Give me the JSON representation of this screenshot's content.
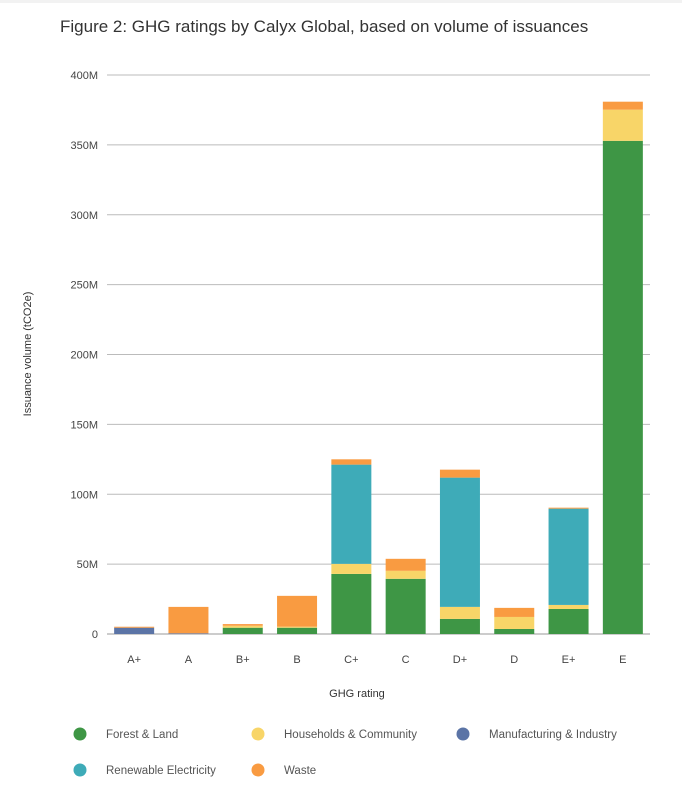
{
  "chart_data": {
    "type": "bar",
    "stacked": true,
    "title": "Figure 2: GHG ratings by Calyx Global, based on volume of issuances",
    "xlabel": "GHG rating",
    "ylabel": "Issuance volume (tCO2e)",
    "ylim": [
      0,
      400000000
    ],
    "yticks": [
      0,
      50000000,
      100000000,
      150000000,
      200000000,
      250000000,
      300000000,
      350000000,
      400000000
    ],
    "ytick_labels": [
      "0",
      "50M",
      "100M",
      "150M",
      "200M",
      "250M",
      "300M",
      "350M",
      "400M"
    ],
    "grid": true,
    "legend_position": "bottom",
    "categories": [
      "A+",
      "A",
      "B+",
      "B",
      "C+",
      "C",
      "D+",
      "D",
      "E+",
      "E"
    ],
    "series": [
      {
        "name": "Forest & Land",
        "color": "#3e9645",
        "values": [
          0,
          0,
          4.5,
          4.5,
          43.0,
          39.5,
          10.8,
          3.6,
          17.9,
          352.9
        ],
        "unit": "M"
      },
      {
        "name": "Households & Community",
        "color": "#f8d568",
        "values": [
          0,
          0,
          1.4,
          0.7,
          7.2,
          5.7,
          8.6,
          8.6,
          2.9,
          22.3
        ],
        "unit": "M"
      },
      {
        "name": "Manufacturing & Industry",
        "color": "#5b74a6",
        "values": [
          4.5,
          0.5,
          0,
          0,
          0,
          0,
          0,
          0,
          0,
          0
        ],
        "unit": "M"
      },
      {
        "name": "Renewable Electricity",
        "color": "#3eabb8",
        "values": [
          0,
          0,
          0,
          0,
          71.0,
          0,
          92.5,
          0,
          68.9,
          0
        ],
        "unit": "M"
      },
      {
        "name": "Waste",
        "color": "#f99b41",
        "values": [
          0.7,
          18.9,
          1.2,
          22.1,
          3.8,
          8.6,
          5.7,
          6.5,
          0.7,
          5.7
        ],
        "unit": "M"
      }
    ]
  }
}
